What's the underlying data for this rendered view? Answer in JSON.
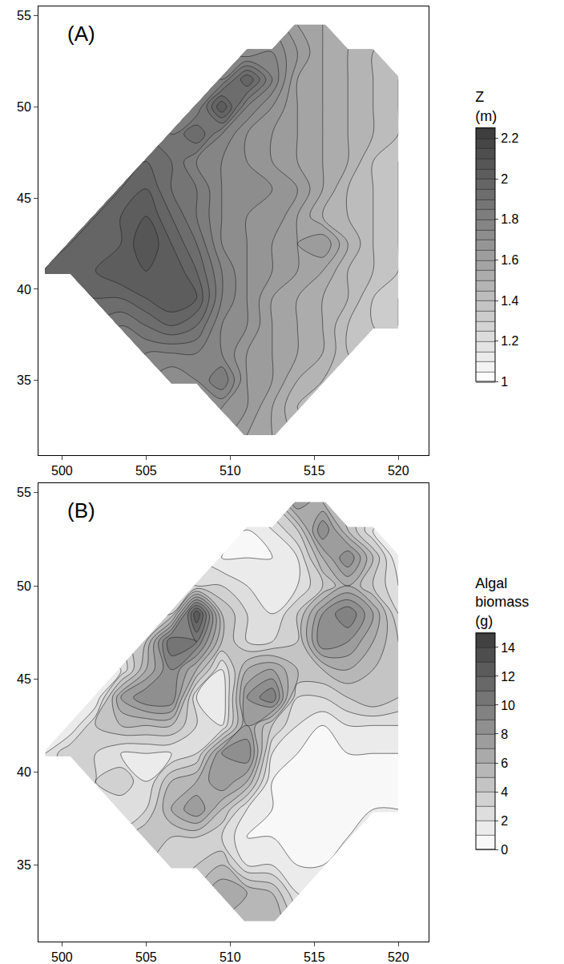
{
  "chart_data": [
    {
      "type": "contour",
      "title": "(A)",
      "colorbar_title": "Z (m)",
      "x": [
        499,
        500.5,
        502,
        503.5,
        505,
        506.5,
        508,
        509.5,
        511,
        512.5,
        514,
        515.5,
        517,
        518.5,
        520
      ],
      "y": [
        32,
        33.5,
        35,
        36.5,
        38,
        39.5,
        41,
        42.5,
        44,
        45.5,
        47,
        48.5,
        50,
        51.5,
        53,
        54.5
      ],
      "z": [
        [
          null,
          null,
          null,
          null,
          null,
          null,
          null,
          null,
          1.6,
          1.55,
          null,
          null,
          null,
          null,
          null
        ],
        [
          null,
          null,
          null,
          null,
          null,
          null,
          null,
          1.7,
          1.65,
          1.55,
          1.45,
          null,
          null,
          null,
          null
        ],
        [
          null,
          null,
          null,
          null,
          null,
          1.7,
          1.75,
          1.85,
          1.65,
          1.6,
          1.5,
          1.45,
          null,
          null,
          null
        ],
        [
          null,
          null,
          null,
          null,
          1.8,
          1.8,
          1.8,
          1.75,
          1.65,
          1.6,
          1.55,
          1.5,
          1.4,
          null,
          null
        ],
        [
          null,
          null,
          null,
          1.85,
          1.9,
          1.95,
          1.9,
          1.75,
          1.7,
          1.6,
          1.55,
          1.5,
          1.4,
          1.35,
          1.3
        ],
        [
          null,
          null,
          1.95,
          1.95,
          2.0,
          2.05,
          2.0,
          1.8,
          1.7,
          1.6,
          1.55,
          1.5,
          1.45,
          1.35,
          1.3
        ],
        [
          1.95,
          2.0,
          2.0,
          2.05,
          2.05,
          2.05,
          1.95,
          1.8,
          1.7,
          1.65,
          1.6,
          1.55,
          1.45,
          1.4,
          1.35
        ],
        [
          null,
          1.95,
          2.0,
          2.0,
          2.1,
          2.0,
          1.9,
          1.75,
          1.7,
          1.65,
          1.6,
          1.65,
          1.5,
          1.4,
          1.35
        ],
        [
          null,
          null,
          1.95,
          2.0,
          2.05,
          1.95,
          1.85,
          1.75,
          1.7,
          1.7,
          1.6,
          1.5,
          1.45,
          1.4,
          1.35
        ],
        [
          null,
          null,
          null,
          1.95,
          2.0,
          1.9,
          1.85,
          1.75,
          1.75,
          1.7,
          1.65,
          1.55,
          1.45,
          1.4,
          1.35
        ],
        [
          null,
          null,
          null,
          null,
          1.95,
          1.9,
          1.8,
          1.75,
          1.7,
          1.65,
          1.6,
          1.55,
          1.5,
          1.4,
          1.35
        ],
        [
          null,
          null,
          null,
          null,
          null,
          1.85,
          1.95,
          1.8,
          1.7,
          1.65,
          1.6,
          1.55,
          1.5,
          1.45,
          1.4
        ],
        [
          null,
          null,
          null,
          null,
          null,
          null,
          1.8,
          2.05,
          1.8,
          1.7,
          1.6,
          1.55,
          1.5,
          1.45,
          1.4
        ],
        [
          null,
          null,
          null,
          null,
          null,
          null,
          null,
          1.8,
          2.0,
          1.8,
          1.6,
          1.55,
          1.5,
          1.45,
          1.4
        ],
        [
          null,
          null,
          null,
          null,
          null,
          null,
          null,
          null,
          1.7,
          1.75,
          1.65,
          1.55,
          1.5,
          1.45,
          null
        ],
        [
          null,
          null,
          null,
          null,
          null,
          null,
          null,
          null,
          null,
          null,
          1.6,
          1.55,
          null,
          null,
          null
        ]
      ],
      "xlim": [
        498.6,
        521.8
      ],
      "ylim": [
        30.9,
        55.5
      ],
      "xticks": [
        500,
        505,
        510,
        515,
        520
      ],
      "yticks": [
        35,
        40,
        45,
        50,
        55
      ],
      "zlim": [
        1,
        2.25
      ],
      "zticks": [
        1,
        1.2,
        1.4,
        1.6,
        1.8,
        2,
        2.2
      ],
      "grid": false
    },
    {
      "type": "contour",
      "title": "(B)",
      "colorbar_title": "Algal biomass (g)",
      "x": [
        499,
        500.5,
        502,
        503.5,
        505,
        506.5,
        508,
        509.5,
        511,
        512.5,
        514,
        515.5,
        517,
        518.5,
        520
      ],
      "y": [
        32,
        33.5,
        35,
        36.5,
        38,
        39.5,
        41,
        42.5,
        44,
        45.5,
        47,
        48.5,
        50,
        51.5,
        53,
        54.5
      ],
      "z": [
        [
          null,
          null,
          null,
          null,
          null,
          null,
          null,
          null,
          5,
          6,
          null,
          null,
          null,
          null,
          null
        ],
        [
          null,
          null,
          null,
          null,
          null,
          null,
          null,
          7,
          6,
          5,
          2,
          null,
          null,
          null,
          null
        ],
        [
          null,
          null,
          null,
          null,
          null,
          3,
          4,
          5,
          2,
          2,
          1,
          1,
          null,
          null,
          null
        ],
        [
          null,
          null,
          null,
          null,
          5,
          4,
          4,
          3,
          1,
          1,
          1,
          1,
          1,
          null,
          null
        ],
        [
          null,
          null,
          null,
          2,
          3,
          6,
          8,
          5,
          2,
          1,
          1,
          1,
          1,
          1,
          1
        ],
        [
          null,
          null,
          3,
          4,
          2,
          5,
          6,
          8,
          6,
          1,
          1,
          1,
          1,
          1,
          1
        ],
        [
          2,
          4,
          3,
          2,
          2,
          2,
          3,
          8,
          9,
          2,
          1,
          1,
          1,
          1,
          1
        ],
        [
          null,
          1,
          4,
          5,
          5,
          5,
          3,
          2,
          7,
          4,
          2,
          1,
          2,
          2,
          2
        ],
        [
          null,
          null,
          1,
          7,
          9,
          9,
          2,
          1,
          8,
          10,
          3,
          3,
          4,
          5,
          4
        ],
        [
          null,
          null,
          null,
          2,
          6,
          9,
          6,
          2,
          6,
          7,
          5,
          5,
          6,
          5,
          5
        ],
        [
          null,
          null,
          null,
          null,
          5,
          11,
          10,
          5,
          3,
          3,
          4,
          9,
          8,
          6,
          4
        ],
        [
          null,
          null,
          null,
          null,
          null,
          4,
          13,
          5,
          3,
          2,
          4,
          8,
          10,
          7,
          3
        ],
        [
          null,
          null,
          null,
          null,
          null,
          null,
          3,
          3,
          2,
          2,
          2,
          4,
          6,
          4,
          2
        ],
        [
          null,
          null,
          null,
          null,
          null,
          null,
          null,
          1,
          1,
          1,
          2,
          6,
          9,
          5,
          1
        ],
        [
          null,
          null,
          null,
          null,
          null,
          null,
          null,
          null,
          1,
          2,
          4,
          9,
          5,
          2,
          null
        ],
        [
          null,
          null,
          null,
          null,
          null,
          null,
          null,
          null,
          null,
          null,
          8,
          6,
          null,
          null,
          null
        ]
      ],
      "xlim": [
        498.6,
        521.8
      ],
      "ylim": [
        30.9,
        55.5
      ],
      "xticks": [
        500,
        505,
        510,
        515,
        520
      ],
      "yticks": [
        35,
        40,
        45,
        50,
        55
      ],
      "zlim": [
        0,
        15
      ],
      "zticks": [
        0,
        2,
        4,
        6,
        8,
        10,
        12,
        14
      ],
      "grid": false
    }
  ]
}
